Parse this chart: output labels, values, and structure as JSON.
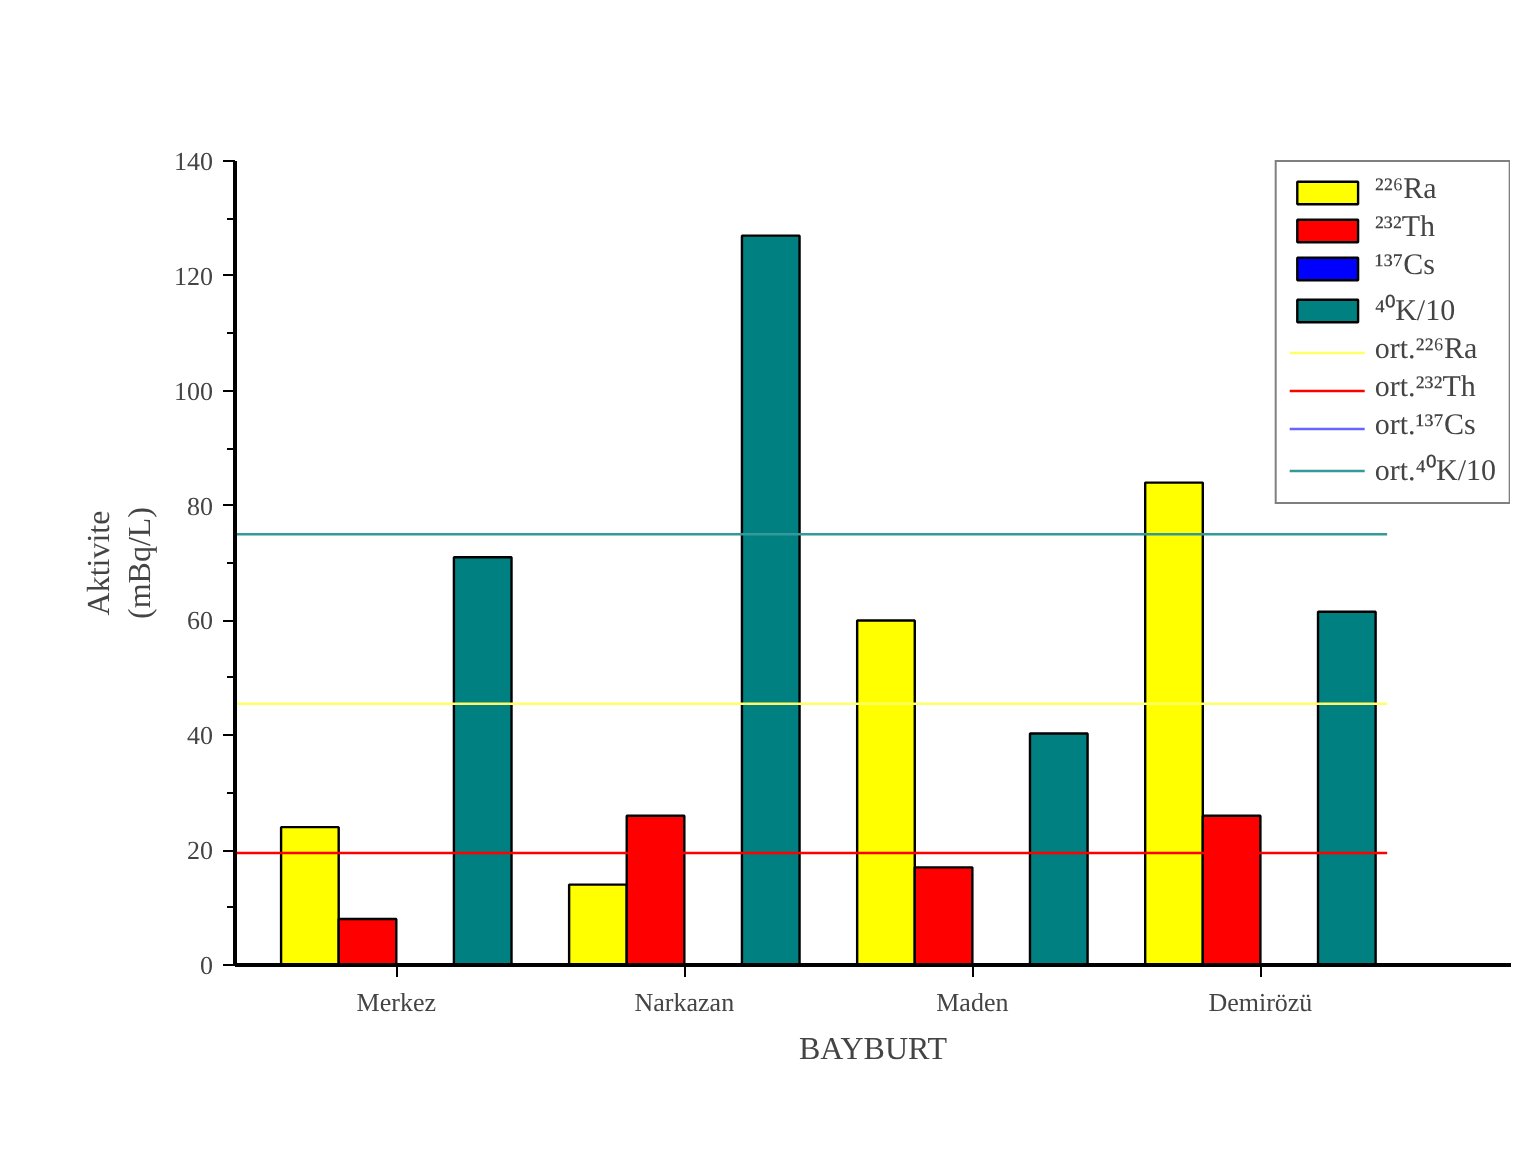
{
  "chart_data": {
    "type": "bar",
    "xlabel": "BAYBURT",
    "ylabel": "Aktivite\n(mBq/L)",
    "categories": [
      "Merkez",
      "Narkazan",
      "Maden",
      "Demirözü"
    ],
    "series": [
      {
        "name": "²²⁶Ra",
        "color": "#ffff00",
        "values": [
          24,
          14,
          60,
          84
        ]
      },
      {
        "name": "²³²Th",
        "color": "#ff0000",
        "values": [
          8,
          26,
          17,
          26
        ]
      },
      {
        "name": "¹³⁷Cs",
        "color": "#0000ff",
        "values": [
          null,
          null,
          null,
          null
        ]
      },
      {
        "name": "⁴⁰K/10",
        "color": "#008080",
        "values": [
          71,
          127,
          40.3,
          61.5
        ]
      }
    ],
    "ref_lines": [
      {
        "axis": "y",
        "value": 45.5,
        "label": "ort.²²⁶Ra",
        "color": "#ffff66"
      },
      {
        "axis": "y",
        "value": 19.5,
        "label": "ort.²³²Th",
        "color": "#ff0000"
      },
      {
        "axis": "y",
        "value": null,
        "label": "ort.¹³⁷Cs",
        "color": "#6666ff"
      },
      {
        "axis": "y",
        "value": 75,
        "label": "ort.⁴⁰K/10",
        "color": "#339999"
      }
    ],
    "ylim": [
      0,
      140
    ],
    "yticks": [
      0,
      20,
      40,
      60,
      80,
      100,
      120,
      140
    ],
    "grid": false,
    "legend": "top right"
  }
}
